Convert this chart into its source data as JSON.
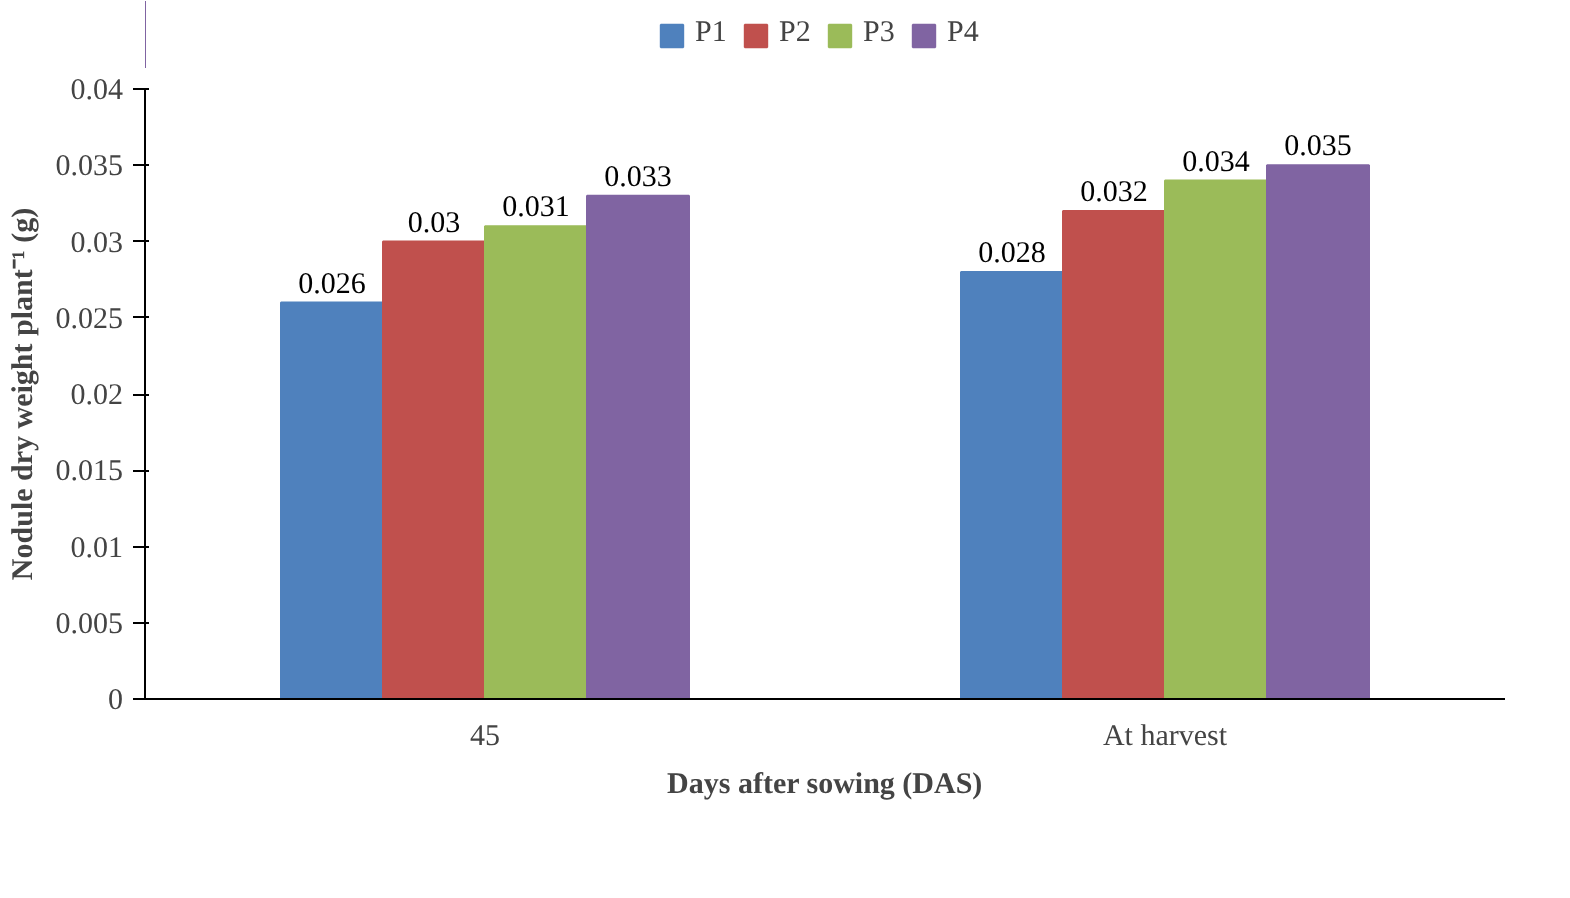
{
  "chart_data": {
    "type": "bar",
    "xlabel": "Days after sowing (DAS)",
    "ylabel": "Nodule dry weight plant⁻¹ (g)",
    "categories": [
      "45",
      "At harvest"
    ],
    "series": [
      {
        "name": "P1",
        "color": "#4f81bd",
        "values": [
          0.026,
          0.028
        ]
      },
      {
        "name": "P2",
        "color": "#c0504d",
        "values": [
          0.03,
          0.032
        ]
      },
      {
        "name": "P3",
        "color": "#9bbb59",
        "values": [
          0.031,
          0.034
        ]
      },
      {
        "name": "P4",
        "color": "#8064a2",
        "values": [
          0.033,
          0.035
        ]
      }
    ],
    "ylim": [
      0,
      0.04
    ],
    "yticks": [
      0,
      0.005,
      0.01,
      0.015,
      0.02,
      0.025,
      0.03,
      0.035,
      0.04
    ],
    "data_labels": true,
    "grid": false,
    "legend": "top"
  }
}
